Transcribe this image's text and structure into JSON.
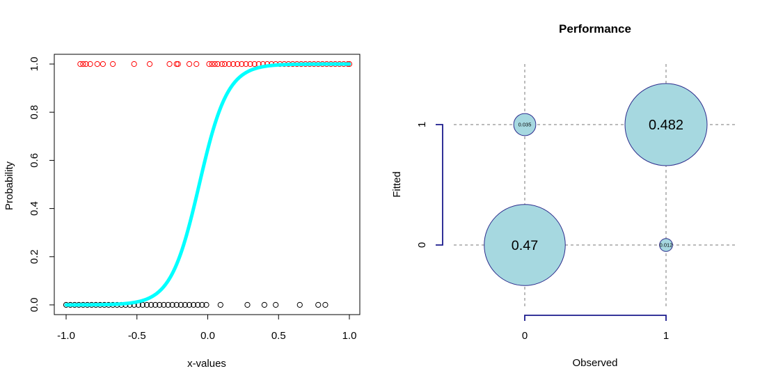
{
  "chart_data": [
    {
      "type": "scatter",
      "title": "",
      "xlabel": "x-values",
      "ylabel": "Probability",
      "xlim": [
        -1.0,
        1.0
      ],
      "ylim": [
        0.0,
        1.0
      ],
      "x_ticks": [
        -1.0,
        -0.5,
        0.0,
        0.5,
        1.0
      ],
      "x_tick_labels": [
        "-1.0",
        "-0.5",
        "0.0",
        "0.5",
        "1.0"
      ],
      "y_ticks": [
        0.0,
        0.2,
        0.4,
        0.6,
        0.8,
        1.0
      ],
      "y_tick_labels": [
        "0.0",
        "0.2",
        "0.4",
        "0.6",
        "0.8",
        "1.0"
      ],
      "grid": false,
      "series": [
        {
          "marker": "open-circle",
          "color": "#ff0000",
          "y": 1,
          "x": [
            -0.9,
            -0.88,
            -0.86,
            -0.83,
            -0.78,
            -0.74,
            -0.67,
            -0.52,
            -0.41,
            -0.27,
            -0.22,
            -0.21,
            -0.13,
            -0.08,
            0.01,
            0.03,
            0.05,
            0.07,
            0.1,
            0.12,
            0.15,
            0.18,
            0.21,
            0.24,
            0.27,
            0.3,
            0.33,
            0.36,
            0.39,
            0.42,
            0.45,
            0.48,
            0.51,
            0.54,
            0.57,
            0.6,
            0.63,
            0.66,
            0.69,
            0.72,
            0.75,
            0.78,
            0.81,
            0.84,
            0.87,
            0.9,
            0.93,
            0.96,
            0.99,
            1.0
          ]
        },
        {
          "marker": "open-circle",
          "color": "#000000",
          "y": 0,
          "x": [
            -1.0,
            -0.97,
            -0.94,
            -0.91,
            -0.88,
            -0.85,
            -0.82,
            -0.79,
            -0.76,
            -0.73,
            -0.7,
            -0.67,
            -0.64,
            -0.61,
            -0.58,
            -0.55,
            -0.52,
            -0.49,
            -0.46,
            -0.43,
            -0.4,
            -0.37,
            -0.34,
            -0.31,
            -0.28,
            -0.25,
            -0.22,
            -0.19,
            -0.16,
            -0.13,
            -0.1,
            -0.07,
            -0.04,
            -0.01,
            0.09,
            0.28,
            0.4,
            0.48,
            0.65,
            0.78,
            0.83
          ]
        }
      ],
      "fitted_curve": {
        "color": "#00ffff",
        "function": "logistic",
        "midpoint": -0.06,
        "steepness": 10
      }
    },
    {
      "type": "bubble",
      "title": "Performance",
      "xlabel": "Observed",
      "ylabel": "Fitted",
      "x_categories": [
        "0",
        "1"
      ],
      "y_categories": [
        "0",
        "1"
      ],
      "fill": "#a6d8e0",
      "outline": "#2c2c8c",
      "cells": [
        {
          "observed": "0",
          "fitted": "1",
          "value": 0.035,
          "label": "0.035"
        },
        {
          "observed": "1",
          "fitted": "1",
          "value": 0.482,
          "label": "0.482"
        },
        {
          "observed": "0",
          "fitted": "0",
          "value": 0.47,
          "label": "0.47"
        },
        {
          "observed": "1",
          "fitted": "0",
          "value": 0.012,
          "label": "0.012"
        }
      ]
    }
  ]
}
